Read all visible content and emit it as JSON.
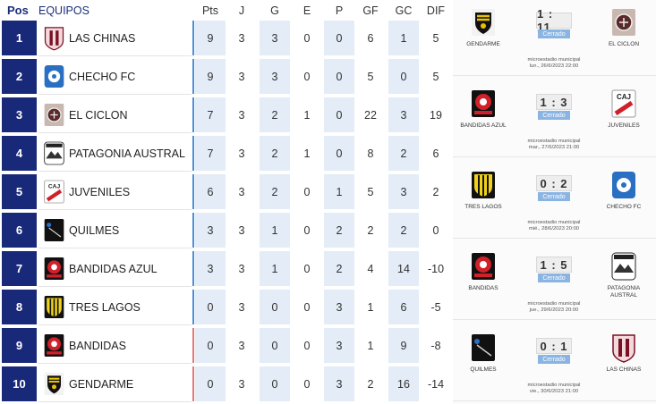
{
  "header": {
    "pos": "Pos",
    "equipos": "EQUIPOS",
    "columns": [
      "Pts",
      "J",
      "G",
      "E",
      "P",
      "GF",
      "GC",
      "DIF"
    ]
  },
  "standings": [
    {
      "pos": "1",
      "team": "LAS CHINAS",
      "pts": "9",
      "j": "3",
      "g": "3",
      "e": "0",
      "p": "0",
      "gf": "6",
      "gc": "1",
      "dif": "5",
      "bar": "#4a90d9",
      "logo": "las-chinas-crest-icon"
    },
    {
      "pos": "2",
      "team": "CHECHO FC",
      "pts": "9",
      "j": "3",
      "g": "3",
      "e": "0",
      "p": "0",
      "gf": "5",
      "gc": "0",
      "dif": "5",
      "bar": "#4a90d9",
      "logo": "checho-fc-crest-icon"
    },
    {
      "pos": "3",
      "team": "EL CICLON",
      "pts": "7",
      "j": "3",
      "g": "2",
      "e": "1",
      "p": "0",
      "gf": "22",
      "gc": "3",
      "dif": "19",
      "bar": "#4a90d9",
      "logo": "el-ciclon-crest-icon"
    },
    {
      "pos": "4",
      "team": "PATAGONIA AUSTRAL",
      "pts": "7",
      "j": "3",
      "g": "2",
      "e": "1",
      "p": "0",
      "gf": "8",
      "gc": "2",
      "dif": "6",
      "bar": "#4a90d9",
      "logo": "patagonia-austral-crest-icon"
    },
    {
      "pos": "5",
      "team": "JUVENILES",
      "pts": "6",
      "j": "3",
      "g": "2",
      "e": "0",
      "p": "1",
      "gf": "5",
      "gc": "3",
      "dif": "2",
      "bar": "#4a90d9",
      "logo": "juveniles-crest-icon"
    },
    {
      "pos": "6",
      "team": "QUILMES",
      "pts": "3",
      "j": "3",
      "g": "1",
      "e": "0",
      "p": "2",
      "gf": "2",
      "gc": "2",
      "dif": "0",
      "bar": "#4a90d9",
      "logo": "quilmes-crest-icon"
    },
    {
      "pos": "7",
      "team": "BANDIDAS AZUL",
      "pts": "3",
      "j": "3",
      "g": "1",
      "e": "0",
      "p": "2",
      "gf": "4",
      "gc": "14",
      "dif": "-10",
      "bar": "#4a90d9",
      "logo": "bandidas-azul-crest-icon"
    },
    {
      "pos": "8",
      "team": "TRES LAGOS",
      "pts": "0",
      "j": "3",
      "g": "0",
      "e": "0",
      "p": "3",
      "gf": "1",
      "gc": "6",
      "dif": "-5",
      "bar": "#4a90d9",
      "logo": "tres-lagos-crest-icon"
    },
    {
      "pos": "9",
      "team": "BANDIDAS",
      "pts": "0",
      "j": "3",
      "g": "0",
      "e": "0",
      "p": "3",
      "gf": "1",
      "gc": "9",
      "dif": "-8",
      "bar": "#e07a7a",
      "logo": "bandidas-crest-icon"
    },
    {
      "pos": "10",
      "team": "GENDARME",
      "pts": "0",
      "j": "3",
      "g": "0",
      "e": "0",
      "p": "3",
      "gf": "2",
      "gc": "16",
      "dif": "-14",
      "bar": "#e07a7a",
      "logo": "gendarme-crest-icon"
    }
  ],
  "matches": [
    {
      "home": "GENDARME",
      "away": "EL CICLON",
      "score": "1 : 11",
      "status": "Cerrado",
      "venue": "microestadio municipal",
      "date": "lun., 26/6/2023 22:00",
      "home_logo": "gendarme-crest-icon",
      "away_logo": "el-ciclon-crest-icon"
    },
    {
      "home": "BANDIDAS AZUL",
      "away": "JUVENILES",
      "score": "1 : 3",
      "status": "Cerrado",
      "venue": "microestadio municipal",
      "date": "mar., 27/6/2023 21:00",
      "home_logo": "bandidas-azul-crest-icon",
      "away_logo": "juveniles-crest-icon"
    },
    {
      "home": "TRES LAGOS",
      "away": "CHECHO FC",
      "score": "0 : 2",
      "status": "Cerrado",
      "venue": "microestadio municipal",
      "date": "mié., 28/6/2023 20:00",
      "home_logo": "tres-lagos-crest-icon",
      "away_logo": "checho-fc-crest-icon"
    },
    {
      "home": "BANDIDAS",
      "away": "PATAGONIA AUSTRAL",
      "score": "1 : 5",
      "status": "Cerrado",
      "venue": "microestadio municipal",
      "date": "jue., 29/6/2023 20:00",
      "home_logo": "bandidas-crest-icon",
      "away_logo": "patagonia-austral-crest-icon"
    },
    {
      "home": "QUILMES",
      "away": "LAS CHINAS",
      "score": "0 : 1",
      "status": "Cerrado",
      "venue": "microestadio municipal",
      "date": "vie., 30/6/2023 21:00",
      "home_logo": "quilmes-crest-icon",
      "away_logo": "las-chinas-crest-icon"
    }
  ],
  "colors": {
    "pos_bg": "#19297a",
    "header_text": "#1a2f7a",
    "bar_upper": "#4a90d9",
    "bar_lower": "#e07a7a",
    "status_bg": "#8ab4e2"
  }
}
